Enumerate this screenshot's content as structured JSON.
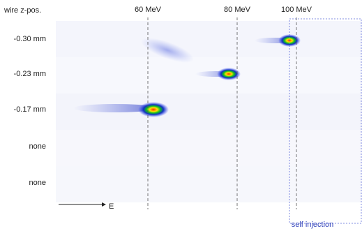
{
  "header_label": "wire z-pos.",
  "rows": [
    "-0.30 mm",
    "-0.23 mm",
    "-0.17 mm",
    "none",
    "none"
  ],
  "energy_markers": [
    "60 MeV",
    "80 MeV",
    "100 MeV"
  ],
  "axis_label": "E",
  "region_label": "self injection"
}
